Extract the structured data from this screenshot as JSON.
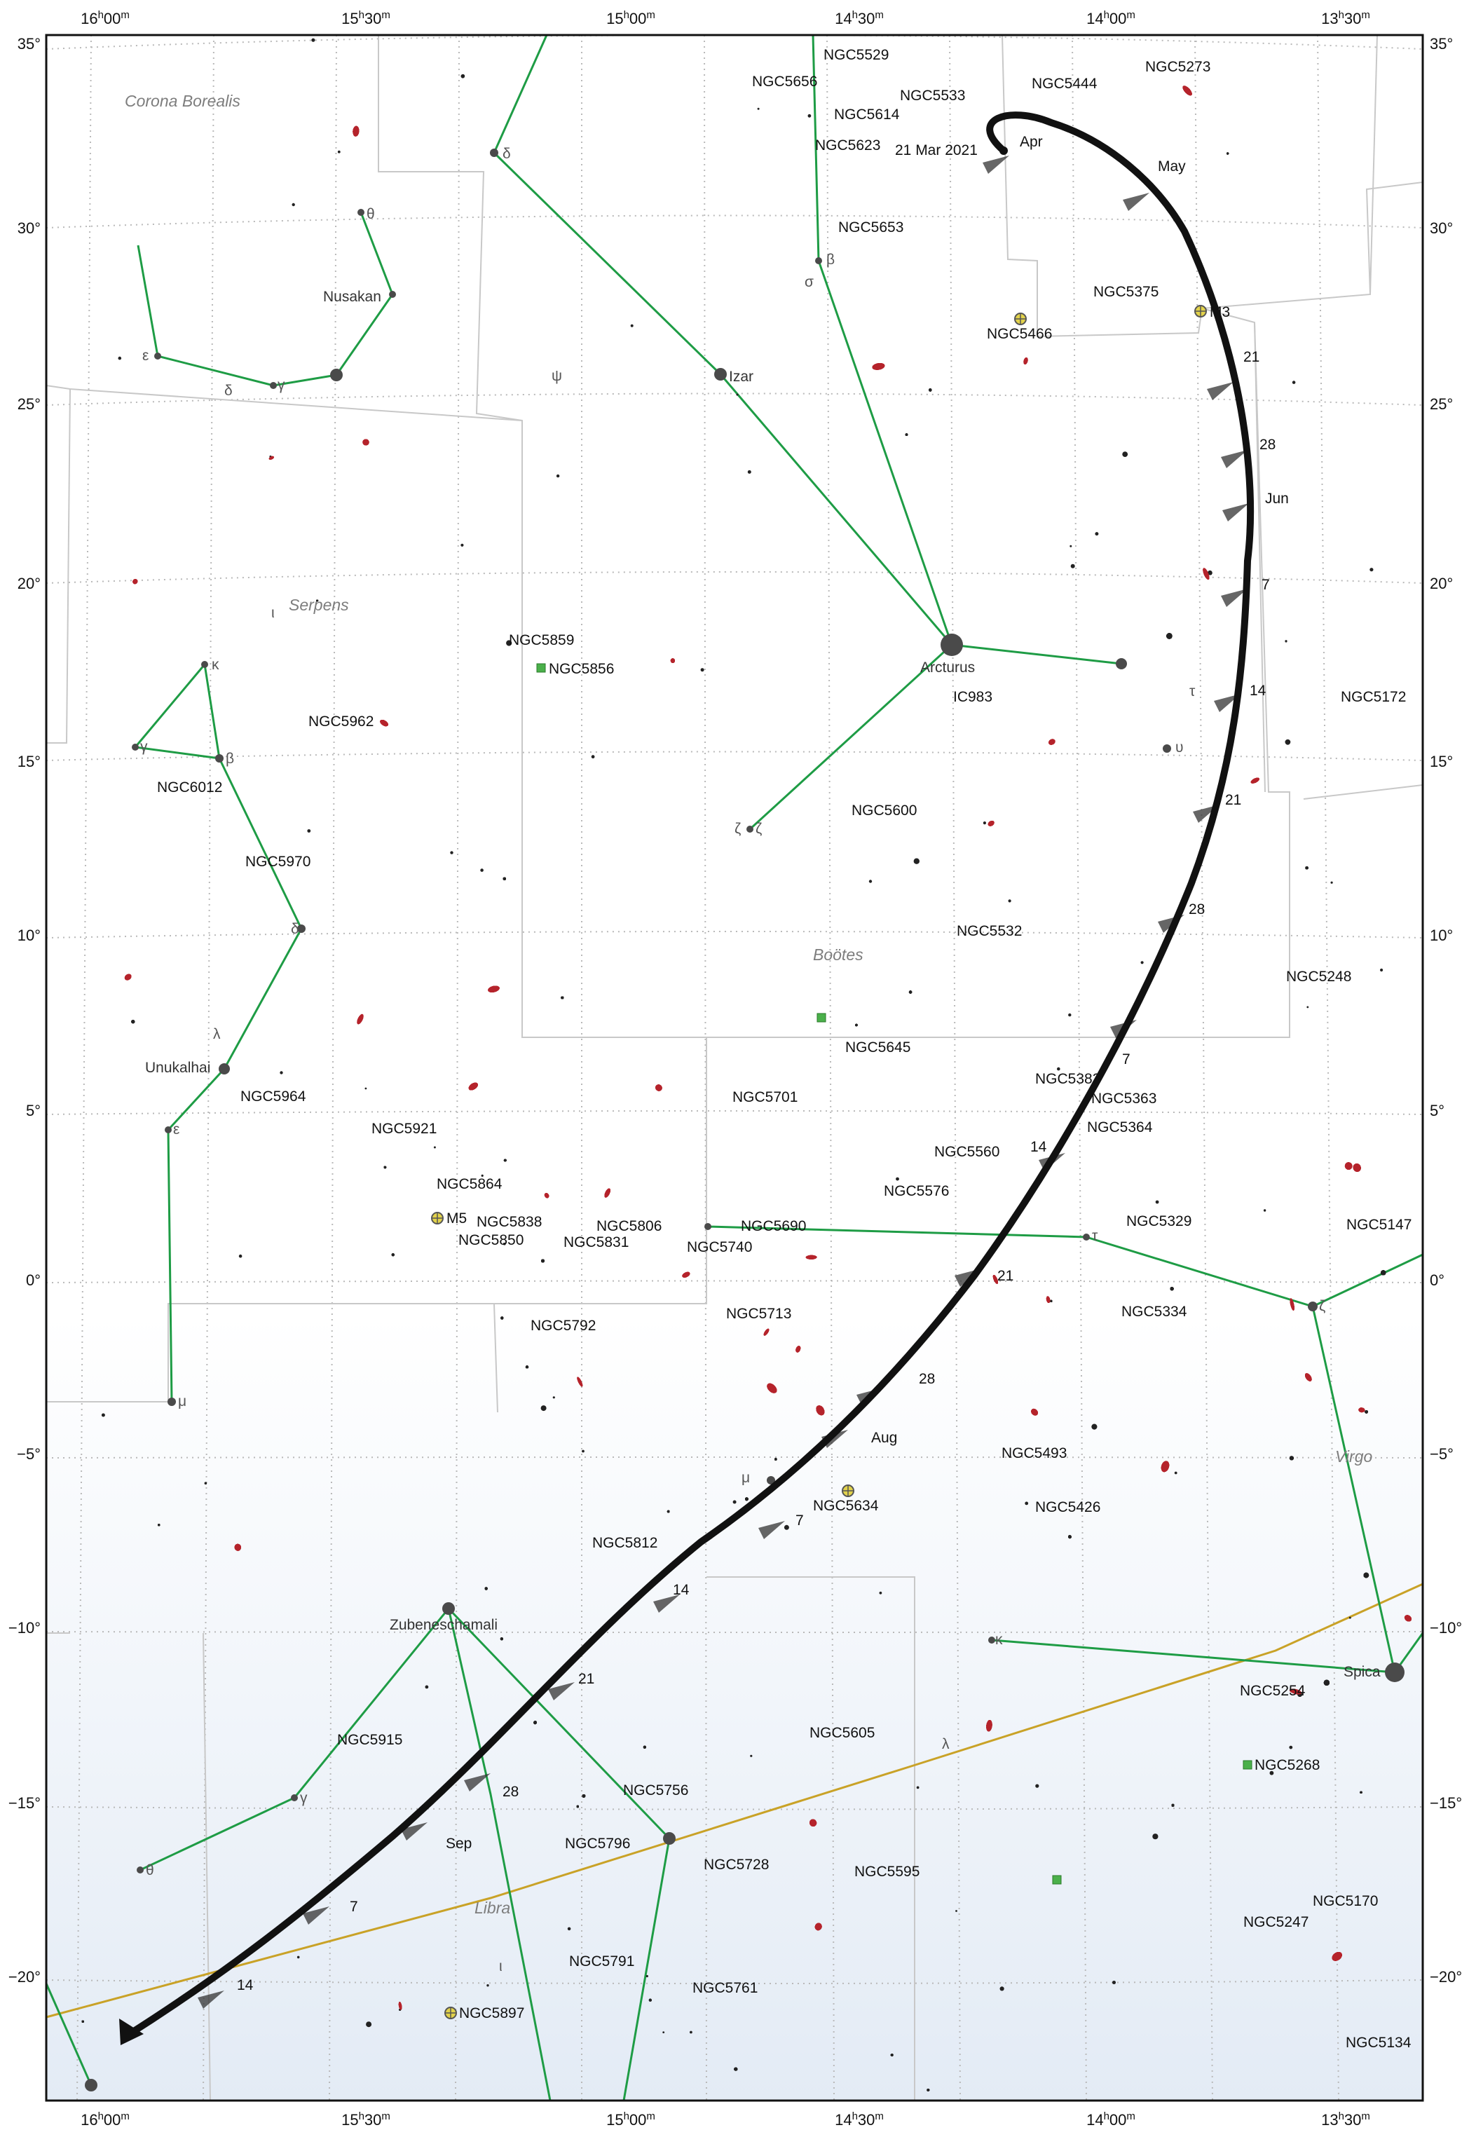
{
  "map": {
    "ra_top_labels": [
      {
        "h": "16",
        "m": "00",
        "text": "16h00m"
      },
      {
        "h": "15",
        "m": "30",
        "text": "15h30m"
      },
      {
        "h": "15",
        "m": "00",
        "text": "15h00m"
      },
      {
        "h": "14",
        "m": "30",
        "text": "14h30m"
      },
      {
        "h": "14",
        "m": "00",
        "text": "14h00m"
      },
      {
        "h": "13",
        "m": "30",
        "text": "13h30m"
      }
    ],
    "dec_labels": [
      "35°",
      "30°",
      "25°",
      "20°",
      "15°",
      "10°",
      "5°",
      "0°",
      "−5°",
      "−10°",
      "−15°",
      "−20°"
    ],
    "constellations": [
      "Corona Borealis",
      "Serpens",
      "Boötes",
      "Virgo",
      "Libra"
    ],
    "stars": [
      "Nusakan",
      "Izar",
      "Arcturus",
      "Unukalhai",
      "Zubeneschamali",
      "Spica"
    ],
    "greek": [
      "θ",
      "ε",
      "γ",
      "δ",
      "ψ",
      "δ",
      "β",
      "σ",
      "ι",
      "κ",
      "γ",
      "β",
      "δ",
      "λ",
      "ε",
      "μ",
      "ζ",
      "ζ",
      "τ",
      "υ",
      "τ",
      "ζ",
      "μ",
      "κ",
      "λ",
      "γ",
      "θ",
      "ι"
    ],
    "objects": [
      "NGC5529",
      "NGC5656",
      "NGC5533",
      "NGC5614",
      "NGC5623",
      "NGC5653",
      "NGC5444",
      "NGC5273",
      "NGC5375",
      "NGC5466",
      "M3",
      "NGC5859",
      "NGC5856",
      "NGC5962",
      "NGC6012",
      "IC983",
      "NGC5172",
      "NGC5970",
      "NGC5600",
      "NGC5532",
      "NGC5248",
      "NGC5645",
      "NGC5964",
      "NGC5701",
      "NGC5383",
      "NGC5363",
      "NGC5921",
      "NGC5364",
      "NGC5560",
      "NGC5576",
      "NGC5864",
      "M5",
      "NGC5838",
      "NGC5806",
      "NGC5850",
      "NGC5831",
      "NGC5740",
      "NGC5690",
      "NGC5329",
      "NGC5147",
      "NGC5713",
      "NGC5334",
      "NGC5792",
      "NGC5493",
      "NGC5426",
      "NGC5634",
      "NGC5812",
      "NGC5254",
      "NGC5915",
      "NGC5605",
      "NGC5268",
      "NGC5756",
      "NGC5796",
      "NGC5728",
      "NGC5595",
      "NGC5170",
      "NGC5247",
      "NGC5791",
      "NGC5761",
      "NGC5897",
      "NGC5134"
    ],
    "path_labels": [
      "21 Mar 2021",
      "Apr",
      "May",
      "21",
      "28",
      "Jun",
      "7",
      "14",
      "21",
      "28",
      "7",
      "14",
      "21",
      "28",
      "Aug",
      "7",
      "14",
      "21",
      "28",
      "Sep",
      "7",
      "14"
    ],
    "colors": {
      "path": "#111111",
      "stick_figures": "#1e9c45",
      "ecliptic": "#c9a227",
      "galaxy": "#b5232b",
      "boundary": "#c8c8c8",
      "grid": "#b9b9b9",
      "cluster": "#8fb830",
      "nebula": "#4ab04a"
    }
  }
}
